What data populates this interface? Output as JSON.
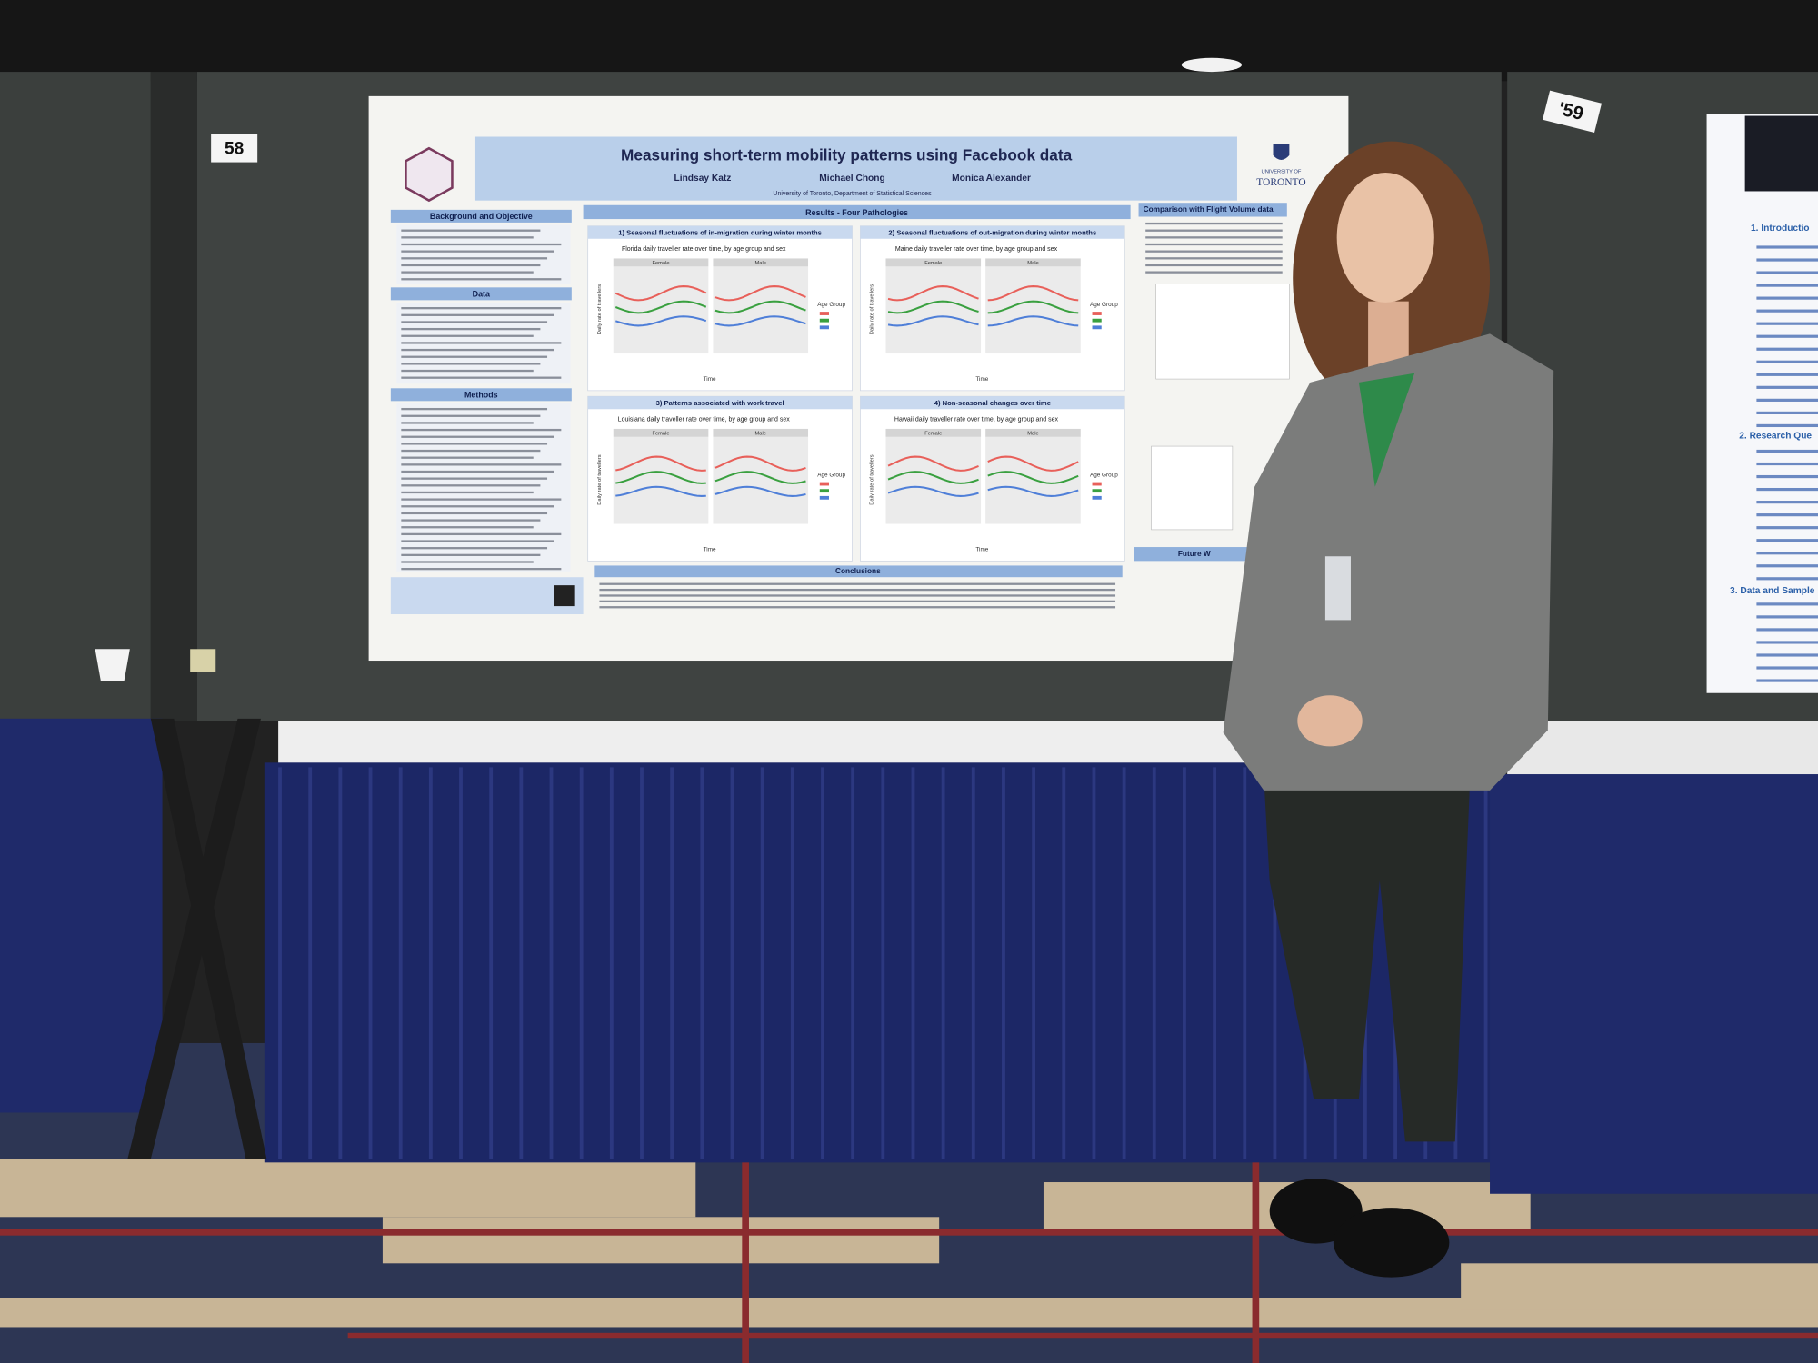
{
  "booth_numbers": [
    "58",
    "'59"
  ],
  "poster": {
    "title": "Measuring short-term mobility patterns using Facebook data",
    "authors": [
      "Lindsay Katz",
      "Michael Chong",
      "Monica Alexander"
    ],
    "affiliation": "University of Toronto, Department of Statistical Sciences",
    "logo": [
      "UNIVERSITY OF",
      "TORONTO"
    ],
    "left_sections": [
      "Background and Objective",
      "Data",
      "Methods"
    ],
    "results_heading": "Results - Four Pathologies",
    "panels": [
      {
        "title": "1) Seasonal fluctuations of in-migration during winter months",
        "subtitle": "Florida daily traveller rate over time, by age group and sex"
      },
      {
        "title": "2) Seasonal fluctuations of out-migration during winter months",
        "subtitle": "Maine daily traveller rate over time, by age group and sex"
      },
      {
        "title": "3) Patterns associated with work travel",
        "subtitle": "Louisiana daily traveller rate over time, by age group and sex"
      },
      {
        "title": "4) Non-seasonal changes over time",
        "subtitle": "Hawaii daily traveller rate over time, by age group and sex"
      }
    ],
    "facets": [
      "Female",
      "Male"
    ],
    "x_label": "Time",
    "y_label": "Daily rate of travellers",
    "legend_title": "Age Group",
    "conclusions_heading": "Conclusions",
    "right_sections": [
      "Comparison with Flight Volume data",
      "Future W"
    ]
  },
  "neighbor_poster": {
    "headings": [
      "1. Introductio",
      "2. Research Que",
      "3. Data and Sample"
    ]
  }
}
